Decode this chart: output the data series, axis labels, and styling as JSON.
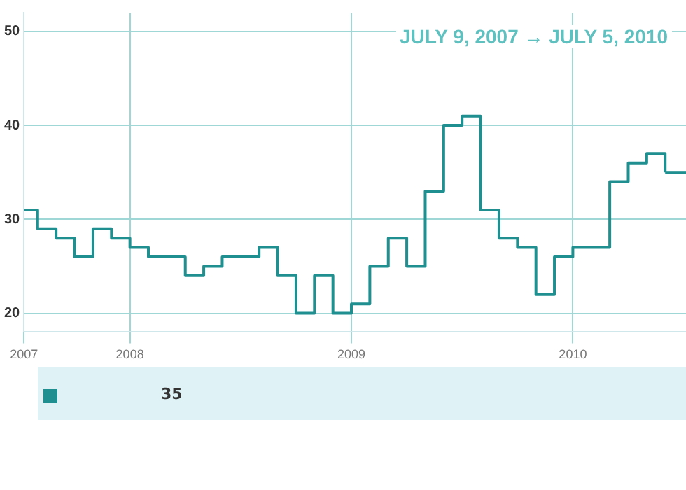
{
  "chart_data": {
    "type": "step",
    "x": [
      "2007-07-09",
      "2007-08",
      "2007-09",
      "2007-10",
      "2007-11",
      "2007-12",
      "2008-01",
      "2008-02",
      "2008-03",
      "2008-04",
      "2008-05",
      "2008-06",
      "2008-07",
      "2008-08",
      "2008-09",
      "2008-10",
      "2008-11",
      "2008-12",
      "2009-01",
      "2009-02",
      "2009-03",
      "2009-04",
      "2009-05",
      "2009-06",
      "2009-07",
      "2009-08",
      "2009-09",
      "2009-10",
      "2009-11",
      "2009-12",
      "2010-01",
      "2010-02",
      "2010-03",
      "2010-04",
      "2010-05",
      "2010-06"
    ],
    "series": [
      {
        "color": "#1f8f8f",
        "values": [
          31,
          29,
          28,
          26,
          29,
          28,
          27,
          26,
          26,
          24,
          25,
          26,
          26,
          27,
          24,
          20,
          24,
          20,
          21,
          25,
          28,
          25,
          33,
          40,
          41,
          31,
          28,
          27,
          22,
          26,
          27,
          27,
          34,
          36,
          37,
          35
        ]
      }
    ],
    "xlim": [
      "2007-07-09",
      "2010-07-05"
    ],
    "xticks": [
      {
        "value": "2007-07-09",
        "label": "2007"
      },
      {
        "value": "2008-01",
        "label": "2008"
      },
      {
        "value": "2009-01",
        "label": "2009"
      },
      {
        "value": "2010-01",
        "label": "2010"
      }
    ],
    "ylim": [
      18,
      52
    ],
    "yticks": [
      20,
      30,
      40,
      50
    ],
    "grid": true,
    "legend": false,
    "annotations": [
      "JULY 9, 2007 → JULY 5, 2010",
      "35"
    ]
  }
}
